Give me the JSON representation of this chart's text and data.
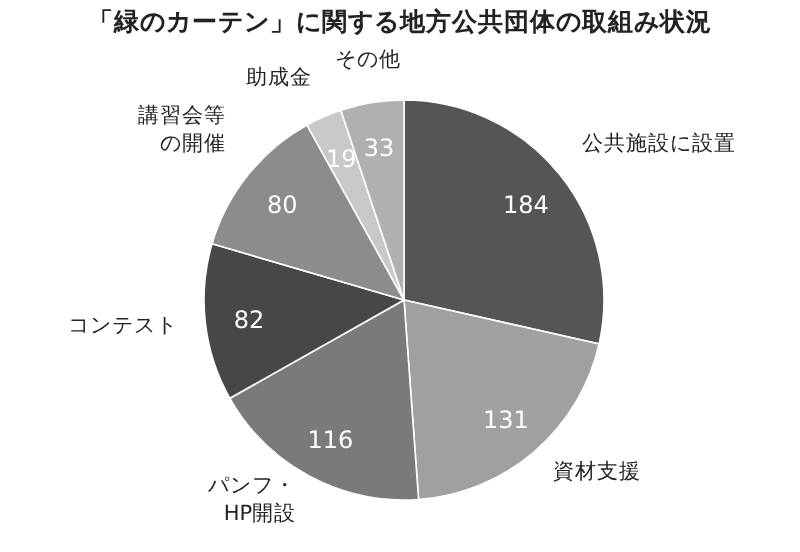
{
  "chart_data": {
    "type": "pie",
    "title": "「緑のカーテン」に関する地方公共団体の取組み状況",
    "categories": [
      "公共施設に設置",
      "資材支援",
      "パンフ・HP開設",
      "コンテスト",
      "講習会等の開催",
      "助成金",
      "その他"
    ],
    "values": [
      184,
      131,
      116,
      82,
      80,
      19,
      33
    ],
    "colors": [
      "#555555",
      "#a0a0a0",
      "#7a7a7a",
      "#474747",
      "#8c8c8c",
      "#c8c8c8",
      "#b0b0b0"
    ],
    "data_labels": true
  }
}
